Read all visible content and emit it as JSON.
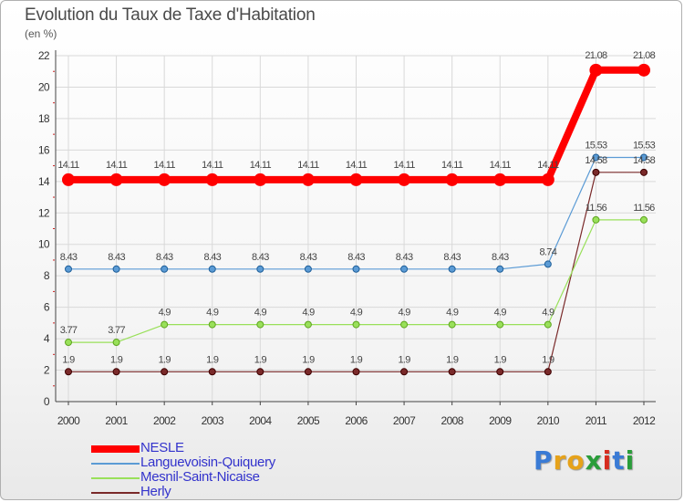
{
  "chart_data": {
    "type": "line",
    "title": "Evolution du Taux de Taxe d'Habitation",
    "ylabel": "(en %)",
    "xlabel": "",
    "ylim": [
      0,
      22
    ],
    "yticks": [
      "0",
      "2",
      "4",
      "6",
      "8",
      "10",
      "12",
      "14",
      "16",
      "18",
      "20",
      "22"
    ],
    "categories": [
      "2000",
      "2001",
      "2002",
      "2003",
      "2004",
      "2005",
      "2006",
      "2007",
      "2008",
      "2009",
      "2010",
      "2011",
      "2012"
    ],
    "grid": true,
    "legend_position": "bottom-left",
    "series": [
      {
        "name": "NESLE",
        "color": "#ff0000",
        "values": [
          14.11,
          14.11,
          14.11,
          14.11,
          14.11,
          14.11,
          14.11,
          14.11,
          14.11,
          14.11,
          14.11,
          21.08,
          21.08
        ],
        "labels": [
          "14.11",
          "14.11",
          "14.11",
          "14.11",
          "14.11",
          "14.11",
          "14.11",
          "14.11",
          "14.11",
          "14.11",
          "14.11",
          "21.08",
          "21.08"
        ]
      },
      {
        "name": "Languevoisin-Quiquery",
        "color": "#5b9bd5",
        "values": [
          8.43,
          8.43,
          8.43,
          8.43,
          8.43,
          8.43,
          8.43,
          8.43,
          8.43,
          8.43,
          8.74,
          15.53,
          15.53
        ],
        "labels": [
          "8.43",
          "8.43",
          "8.43",
          "8.43",
          "8.43",
          "8.43",
          "8.43",
          "8.43",
          "8.43",
          "8.43",
          "8.74",
          "15.53",
          "15.53"
        ]
      },
      {
        "name": "Mesnil-Saint-Nicaise",
        "color": "#99e05a",
        "values": [
          3.77,
          3.77,
          4.9,
          4.9,
          4.9,
          4.9,
          4.9,
          4.9,
          4.9,
          4.9,
          4.9,
          11.56,
          11.56
        ],
        "labels": [
          "3.77",
          "3.77",
          "4.9",
          "4.9",
          "4.9",
          "4.9",
          "4.9",
          "4.9",
          "4.9",
          "4.9",
          "4.9",
          "11.56",
          "11.56"
        ]
      },
      {
        "name": "Herly",
        "color": "#7a2a2a",
        "values": [
          1.9,
          1.9,
          1.9,
          1.9,
          1.9,
          1.9,
          1.9,
          1.9,
          1.9,
          1.9,
          1.9,
          14.58,
          14.58
        ],
        "labels": [
          "1.9",
          "1.9",
          "1.9",
          "1.9",
          "1.9",
          "1.9",
          "1.9",
          "1.9",
          "1.9",
          "1.9",
          "1.9",
          "14.58",
          "14.58"
        ]
      }
    ]
  },
  "brand": {
    "letters": [
      "P",
      "r",
      "o",
      "x",
      "i",
      "t",
      "i"
    ],
    "colors": [
      "#3a7bd5",
      "#e6a21a",
      "#e6a21a",
      "#2a9d3a",
      "#d62d20",
      "#3a7bd5",
      "#2a9d3a"
    ]
  }
}
